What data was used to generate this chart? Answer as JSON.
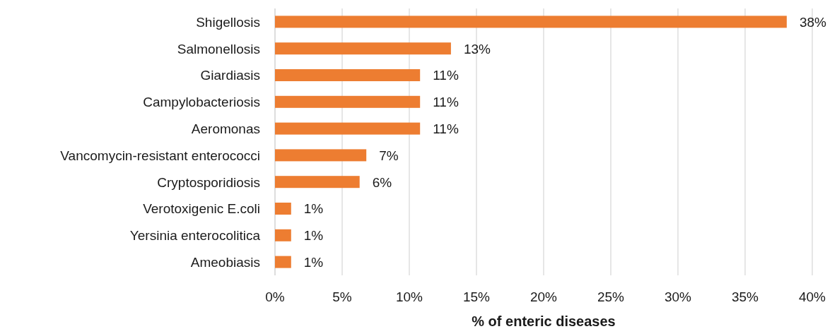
{
  "chart_data": {
    "type": "bar",
    "orientation": "horizontal",
    "categories": [
      "Shigellosis",
      "Salmonellosis",
      "Giardiasis",
      "Campylobacteriosis",
      "Aeromonas",
      "Vancomycin-resistant enterococci",
      "Cryptosporidiosis",
      "Verotoxigenic E.coli",
      "Yersinia enterocolitica",
      "Ameobiasis"
    ],
    "values": [
      38.1,
      13.1,
      10.8,
      10.8,
      10.8,
      6.8,
      6.3,
      1.2,
      1.2,
      1.2
    ],
    "value_labels": [
      "38%",
      "13%",
      "11%",
      "11%",
      "11%",
      "7%",
      "6%",
      "1%",
      "1%",
      "1%"
    ],
    "color": "#ed7d31",
    "xlim": [
      0,
      40
    ],
    "xticks": [
      {
        "value": 0,
        "label": "0%"
      },
      {
        "value": 5,
        "label": "5%"
      },
      {
        "value": 10,
        "label": "10%"
      },
      {
        "value": 15,
        "label": "15%"
      },
      {
        "value": 20,
        "label": "20%"
      },
      {
        "value": 25,
        "label": "25%"
      },
      {
        "value": 30,
        "label": "30%"
      },
      {
        "value": 35,
        "label": "35%"
      },
      {
        "value": 40,
        "label": "40%"
      }
    ],
    "xlabel": "% of enteric diseases",
    "grid": "x"
  }
}
